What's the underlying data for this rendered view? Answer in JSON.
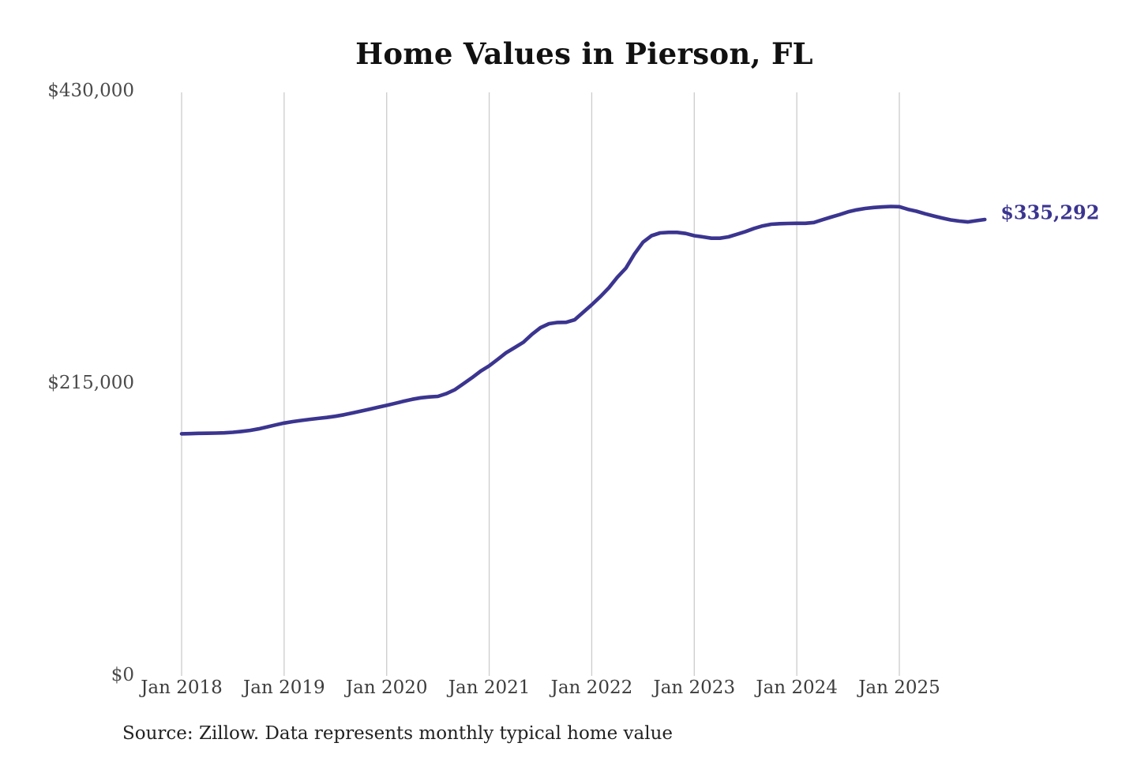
{
  "title": "Home Values in Pierson, FL",
  "source_note": "Source: Zillow. Data represents monthly typical home value",
  "colors": {
    "line": "#3b3590",
    "grid": "#cccccc",
    "y_tick_text": "#4a4a4a",
    "x_tick_text": "#3d3d3d",
    "title_text": "#111111",
    "source_text": "#222222",
    "end_label_text": "#3b3590",
    "background": "#ffffff"
  },
  "chart_data": {
    "type": "line",
    "title": "Home Values in Pierson, FL",
    "xlabel": "",
    "ylabel": "",
    "ylim": [
      0,
      430000
    ],
    "grid": "vertical-only",
    "legend": "none",
    "end_label": "$335,292",
    "latest_value": 335292,
    "x_start": "2018-01",
    "x_end": "2025-11",
    "x_interval": "month",
    "yticks": [
      {
        "label": "$430,000",
        "value": 430000
      },
      {
        "label": "$215,000",
        "value": 215000
      },
      {
        "label": "$0",
        "value": 0
      }
    ],
    "xticks": [
      {
        "label": "Jan 2018",
        "month_index": 0
      },
      {
        "label": "Jan 2019",
        "month_index": 12
      },
      {
        "label": "Jan 2020",
        "month_index": 24
      },
      {
        "label": "Jan 2021",
        "month_index": 36
      },
      {
        "label": "Jan 2022",
        "month_index": 48
      },
      {
        "label": "Jan 2023",
        "month_index": 60
      },
      {
        "label": "Jan 2024",
        "month_index": 72
      },
      {
        "label": "Jan 2025",
        "month_index": 84
      }
    ],
    "series": [
      {
        "name": "Monthly typical home value",
        "values": [
          177600,
          177700,
          177900,
          178000,
          178100,
          178300,
          178700,
          179300,
          180100,
          181200,
          182600,
          184100,
          185500,
          186500,
          187400,
          188200,
          188900,
          189600,
          190500,
          191600,
          192900,
          194300,
          195700,
          197100,
          198500,
          200000,
          201600,
          203000,
          204100,
          204700,
          205100,
          207200,
          210100,
          214500,
          218900,
          223700,
          227600,
          232400,
          237300,
          241100,
          245000,
          250800,
          255700,
          258600,
          259500,
          259600,
          261500,
          267000,
          272500,
          278500,
          285000,
          292800,
          299500,
          309900,
          318600,
          323400,
          325400,
          325800,
          325800,
          325000,
          323400,
          322500,
          321500,
          321500,
          322500,
          324400,
          326400,
          328700,
          330600,
          331800,
          332200,
          332400,
          332500,
          332500,
          333100,
          335100,
          337000,
          338900,
          340900,
          342400,
          343400,
          344100,
          344500,
          344900,
          344700,
          342800,
          341400,
          339500,
          337900,
          336400,
          335000,
          334100,
          333500,
          334400,
          335292
        ]
      }
    ]
  }
}
